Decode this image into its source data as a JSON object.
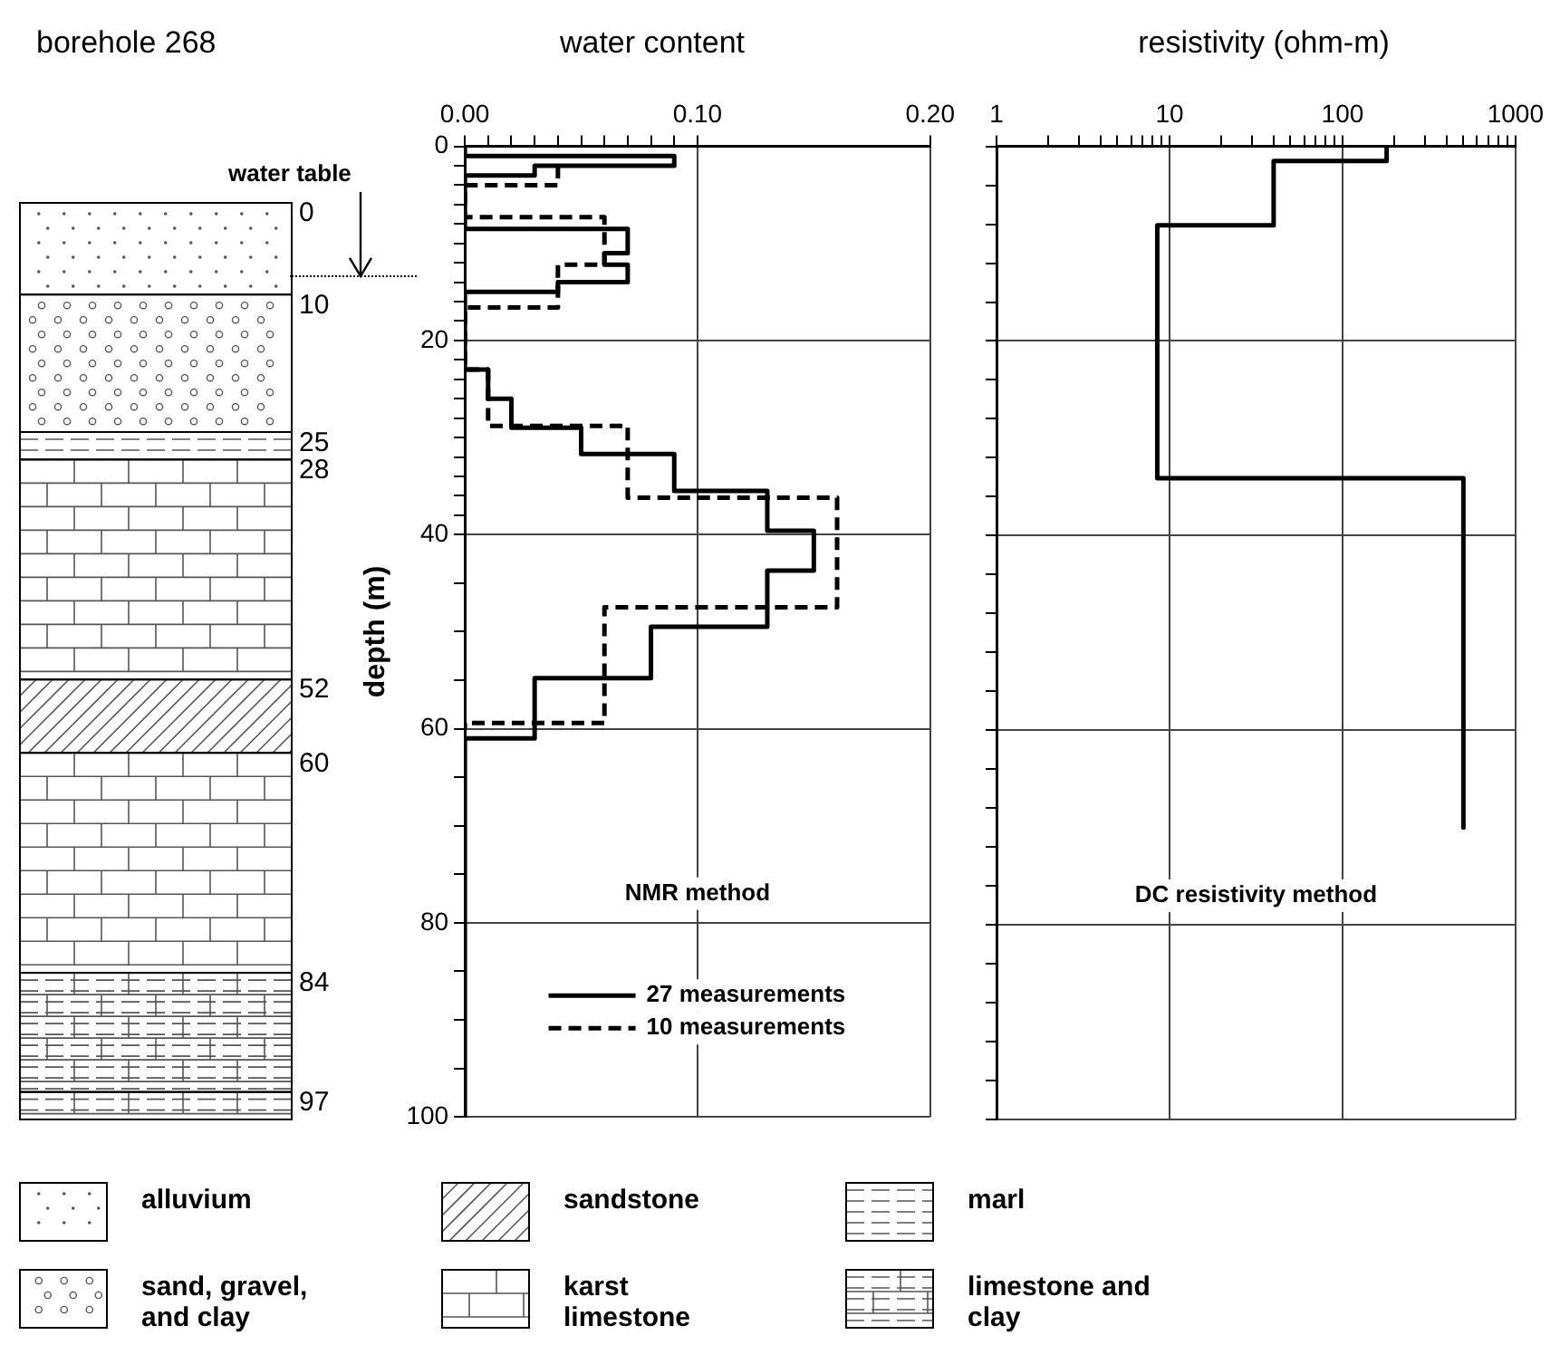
{
  "chart_data": [
    {
      "type": "other",
      "title": "borehole 268",
      "categories": [
        "alluvium",
        "sandstone",
        "marl",
        "sand, gravel, and clay",
        "karst limestone",
        "limestone and clay"
      ],
      "annotations": [
        "water table",
        "0",
        "10",
        "25",
        "28",
        "52",
        "60",
        "84",
        "97"
      ]
    },
    {
      "type": "line",
      "title": "water content",
      "ylabel": "depth (m)",
      "xlim": [
        0,
        0.2
      ],
      "ylim": [
        100,
        0
      ],
      "xticks": [
        {
          "value": 0,
          "label": "0.00"
        },
        {
          "value": 0.01,
          "label": null
        },
        {
          "value": 0.02,
          "label": null
        },
        {
          "value": 0.03,
          "label": null
        },
        {
          "value": 0.04,
          "label": null
        },
        {
          "value": 0.05,
          "label": null
        },
        {
          "value": 0.06,
          "label": null
        },
        {
          "value": 0.07,
          "label": null
        },
        {
          "value": 0.08,
          "label": null
        },
        {
          "value": 0.09,
          "label": null
        },
        {
          "value": 0.1,
          "label": "0.10"
        },
        {
          "value": 0.2,
          "label": "0.20"
        }
      ],
      "yticks": [
        0,
        {
          "value": 2,
          "label": null
        },
        {
          "value": 4,
          "label": null
        },
        {
          "value": 6,
          "label": null
        },
        {
          "value": 8,
          "label": null
        },
        {
          "value": 10,
          "label": null
        },
        {
          "value": 12,
          "label": null
        },
        {
          "value": 14,
          "label": null
        },
        {
          "value": 16,
          "label": null
        },
        {
          "value": 18,
          "label": null
        },
        20,
        {
          "value": 22,
          "label": null
        },
        {
          "value": 24,
          "label": null
        },
        {
          "value": 26,
          "label": null
        },
        {
          "value": 28,
          "label": null
        },
        {
          "value": 30,
          "label": null
        },
        {
          "value": 32,
          "label": null
        },
        {
          "value": 34,
          "label": null
        },
        {
          "value": 36,
          "label": null
        },
        {
          "value": 38,
          "label": null
        },
        40,
        {
          "value": 45,
          "label": null
        },
        {
          "value": 50,
          "label": null
        },
        {
          "value": 55,
          "label": null
        },
        60,
        {
          "value": 65,
          "label": null
        },
        {
          "value": 70,
          "label": null
        },
        {
          "value": 75,
          "label": null
        },
        80,
        {
          "value": 85,
          "label": null
        },
        {
          "value": 90,
          "label": null
        },
        {
          "value": 95,
          "label": null
        },
        100
      ],
      "grid": true,
      "legend": "bottom",
      "annotations": [
        "NMR method"
      ],
      "series": [
        {
          "name": "27 measurements",
          "color": "#000000",
          "line_style": "solid",
          "x": [
            0,
            0,
            0.09,
            0.09,
            0.03,
            0.03,
            0,
            0,
            0.07,
            0.07,
            0.06,
            0.06,
            0.07,
            0.07,
            0.04,
            0.04,
            0,
            0,
            0.01,
            0.01,
            0.02,
            0.02,
            0.05,
            0.05,
            0.09,
            0.09,
            0.13,
            0.13,
            0.15,
            0.15,
            0.13,
            0.13,
            0.08,
            0.08,
            0.03,
            0.03,
            0,
            0
          ],
          "values": [
            0,
            1,
            1,
            2,
            2,
            3,
            3,
            8.5,
            8.5,
            11,
            11,
            12.2,
            12.2,
            14,
            14,
            15,
            15,
            23,
            23,
            26,
            26,
            29,
            29,
            31.7,
            31.7,
            35.5,
            35.5,
            39.6,
            39.6,
            43.7,
            43.7,
            49.5,
            49.5,
            54.8,
            54.8,
            61,
            61,
            100
          ]
        },
        {
          "name": "10 measurements",
          "color": "#000000",
          "line_style": "dashed",
          "x": [
            0.04,
            0.04,
            0,
            0,
            0.06,
            0.06,
            0.04,
            0.04,
            0,
            0,
            0.01,
            0.01,
            0.07,
            0.07,
            0.16,
            0.16,
            0.06,
            0.06,
            0,
            0
          ],
          "values": [
            2,
            4,
            4,
            7.3,
            7.3,
            12.2,
            12.2,
            16.6,
            16.6,
            23,
            23,
            28.8,
            28.8,
            36.2,
            36.2,
            47.5,
            47.5,
            59.4,
            59.4,
            60
          ]
        }
      ]
    },
    {
      "type": "line",
      "title": "resistivity (ohm-m)",
      "log": "x",
      "xlim": [
        1,
        1000
      ],
      "ylim": [
        100,
        0
      ],
      "tick_labels": "x",
      "xticks": [
        1,
        {
          "value": 2,
          "label": null
        },
        {
          "value": 3,
          "label": null
        },
        {
          "value": 4,
          "label": null
        },
        {
          "value": 5,
          "label": null
        },
        {
          "value": 6,
          "label": null
        },
        {
          "value": 7,
          "label": null
        },
        {
          "value": 8,
          "label": null
        },
        {
          "value": 9,
          "label": null
        },
        10,
        {
          "value": 20,
          "label": null
        },
        {
          "value": 30,
          "label": null
        },
        {
          "value": 40,
          "label": null
        },
        {
          "value": 50,
          "label": null
        },
        {
          "value": 60,
          "label": null
        },
        {
          "value": 70,
          "label": null
        },
        {
          "value": 80,
          "label": null
        },
        {
          "value": 90,
          "label": null
        },
        100,
        {
          "value": 200,
          "label": null
        },
        {
          "value": 300,
          "label": null
        },
        {
          "value": 400,
          "label": null
        },
        {
          "value": 500,
          "label": null
        },
        {
          "value": 600,
          "label": null
        },
        {
          "value": 700,
          "label": null
        },
        {
          "value": 800,
          "label": null
        },
        {
          "value": 900,
          "label": null
        },
        1000
      ],
      "yticks": [
        0,
        {
          "value": 4,
          "label": null
        },
        {
          "value": 8,
          "label": null
        },
        {
          "value": 12,
          "label": null
        },
        {
          "value": 16,
          "label": null
        },
        20,
        {
          "value": 24,
          "label": null
        },
        {
          "value": 28,
          "label": null
        },
        {
          "value": 32,
          "label": null
        },
        {
          "value": 36,
          "label": null
        },
        40,
        {
          "value": 44,
          "label": null
        },
        {
          "value": 48,
          "label": null
        },
        {
          "value": 52,
          "label": null
        },
        {
          "value": 56,
          "label": null
        },
        60,
        {
          "value": 64,
          "label": null
        },
        {
          "value": 68,
          "label": null
        },
        {
          "value": 72,
          "label": null
        },
        {
          "value": 76,
          "label": null
        },
        80,
        {
          "value": 84,
          "label": null
        },
        {
          "value": 88,
          "label": null
        },
        {
          "value": 92,
          "label": null
        },
        {
          "value": 96,
          "label": null
        },
        100
      ],
      "grid": true,
      "annotations": [
        "DC resistivity method"
      ],
      "series": [
        {
          "color": "#000000",
          "line_style": "solid",
          "x": [
            180,
            180,
            40,
            40,
            8.5,
            8.5,
            500,
            500
          ],
          "values": [
            0,
            1.5,
            1.5,
            8.1,
            8.1,
            34.1,
            34.1,
            70
          ]
        }
      ]
    }
  ]
}
